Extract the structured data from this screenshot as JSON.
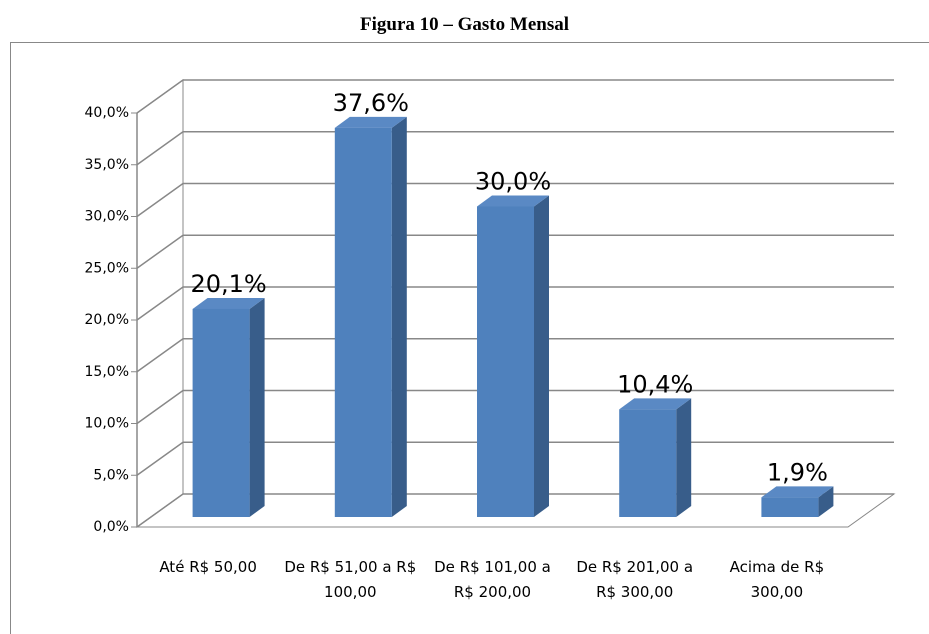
{
  "chart_data": {
    "type": "bar",
    "title": "Figura 10 – Gasto Mensal",
    "categories": [
      "Até R$ 50,00",
      "De R$ 51,00 a R$ 100,00",
      "De R$ 101,00 a R$ 200,00",
      "De R$ 201,00 a R$ 300,00",
      "Acima de R$ 300,00"
    ],
    "values": [
      20.1,
      37.6,
      30.0,
      10.4,
      1.9
    ],
    "value_labels": [
      "20,1%",
      "37,6%",
      "30,0%",
      "10,4%",
      "1,9%"
    ],
    "color": "#4f81bd",
    "ylim": [
      0,
      40
    ],
    "yticks": [
      {
        "value": 0,
        "label": "0,0%"
      },
      {
        "value": 5,
        "label": "5,0%"
      },
      {
        "value": 10,
        "label": "10,0%"
      },
      {
        "value": 15,
        "label": "15,0%"
      },
      {
        "value": 20,
        "label": "20,0%"
      },
      {
        "value": 25,
        "label": "25,0%"
      },
      {
        "value": 30,
        "label": "30,0%"
      },
      {
        "value": 35,
        "label": "35,0%"
      },
      {
        "value": 40,
        "label": "40,0%"
      }
    ],
    "grid": true
  }
}
